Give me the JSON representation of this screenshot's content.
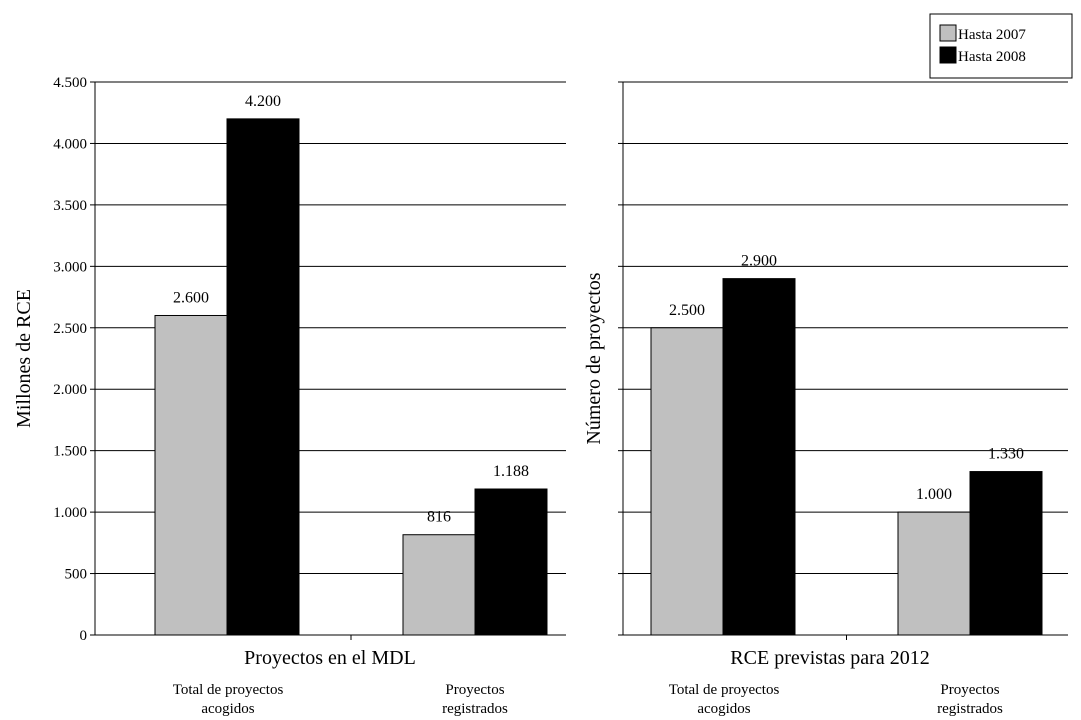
{
  "chart_data": [
    {
      "type": "bar",
      "categories": [
        "Total de proyectos acogidos",
        "Proyectos registrados"
      ],
      "series": [
        {
          "name": "Hasta 2007",
          "values": [
            2600,
            816
          ],
          "labels": [
            "2.600",
            "816"
          ]
        },
        {
          "name": "Hasta 2008",
          "values": [
            4200,
            1188
          ],
          "labels": [
            "4.200",
            "1.188"
          ]
        }
      ],
      "xlabel": "Proyectos en el MDL",
      "ylabel": "Millones de RCE",
      "ylim": [
        0,
        4500
      ],
      "yticks": [
        0,
        500,
        1000,
        1500,
        2000,
        2500,
        3000,
        3500,
        4000,
        4500
      ],
      "ytick_labels": [
        "0",
        "500",
        "1.000",
        "1.500",
        "2.000",
        "2.500",
        "3.000",
        "3.500",
        "4.000",
        "4.500"
      ],
      "grid": true
    },
    {
      "type": "bar",
      "categories": [
        "Total de proyectos acogidos",
        "Proyectos registrados"
      ],
      "series": [
        {
          "name": "Hasta 2007",
          "values": [
            2500,
            1000
          ],
          "labels": [
            "2.500",
            "1.000"
          ]
        },
        {
          "name": "Hasta 2008",
          "values": [
            2900,
            1330
          ],
          "labels": [
            "2.900",
            "1.330"
          ]
        }
      ],
      "xlabel": "RCE previstas para 2012",
      "ylabel": "Número de proyectos",
      "ylim": [
        0,
        4500
      ],
      "grid": true
    }
  ],
  "legend": {
    "placement": "top-right",
    "items": [
      {
        "label": "Hasta 2007",
        "color": "#c0c0c0"
      },
      {
        "label": "Hasta 2008",
        "color": "#000000"
      }
    ]
  }
}
